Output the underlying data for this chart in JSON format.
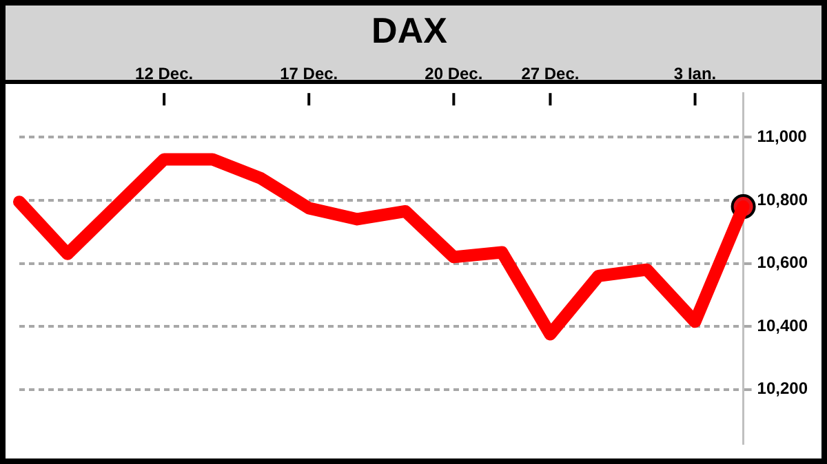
{
  "chart_data": {
    "type": "line",
    "title": "DAX",
    "categories": [
      null,
      null,
      null,
      "12 Dec.",
      null,
      null,
      "17 Dec.",
      null,
      null,
      "20 Dec.",
      null,
      "27 Dec.",
      null,
      null,
      "3 Ian.",
      null
    ],
    "series": [
      {
        "color": "#ff0000",
        "values": [
          10795,
          10630,
          10780,
          10930,
          10930,
          10870,
          10775,
          10740,
          10765,
          10620,
          10635,
          10375,
          10560,
          10580,
          10415,
          10780
        ]
      },
      {
        "type": "scatter",
        "marker": "circle",
        "color": "#e8141c",
        "values": [
          null,
          null,
          null,
          null,
          null,
          null,
          null,
          null,
          null,
          null,
          null,
          null,
          null,
          null,
          null,
          10780
        ]
      }
    ],
    "ylim": [
      10030,
      11140
    ],
    "yticks": [
      {
        "value": 10200,
        "label": "10,200"
      },
      {
        "value": 10400,
        "label": "10,400"
      },
      {
        "value": 10600,
        "label": "10,600"
      },
      {
        "value": 10800,
        "label": "10,800"
      },
      {
        "value": 11000,
        "label": "11,000"
      }
    ],
    "grid": "y",
    "legend": false,
    "marker": "none"
  }
}
